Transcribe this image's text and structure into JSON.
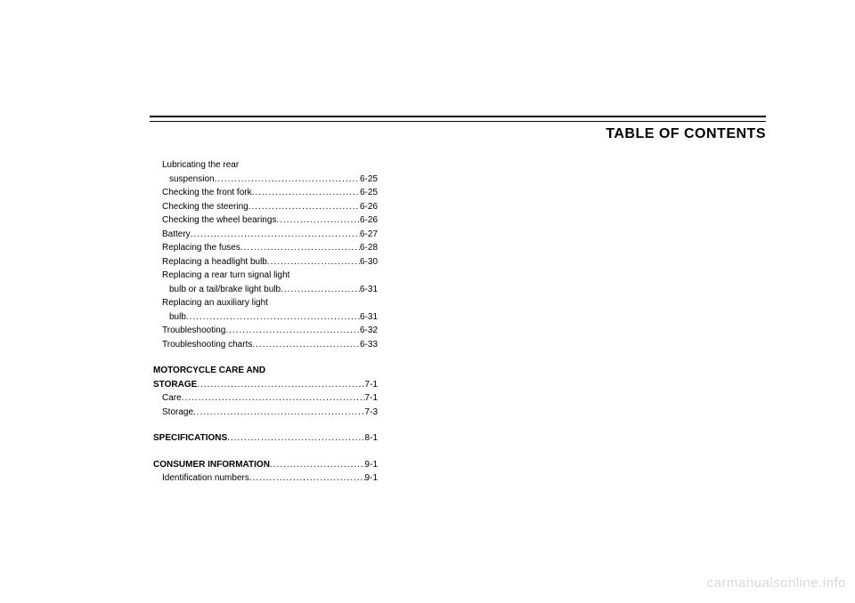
{
  "title": "TABLE OF CONTENTS",
  "watermark": "carmanualsonline.info",
  "toc": {
    "group1": [
      {
        "text": "Lubricating the rear",
        "wrap": true,
        "indent": 1
      },
      {
        "text": "suspension ",
        "page": "6-25",
        "indent": 2
      },
      {
        "text": "Checking the front fork ",
        "page": "6-25",
        "indent": 1
      },
      {
        "text": "Checking the steering ",
        "page": "6-26",
        "indent": 1
      },
      {
        "text": "Checking the wheel bearings ",
        "page": "6-26",
        "indent": 1
      },
      {
        "text": "Battery ",
        "page": "6-27",
        "indent": 1
      },
      {
        "text": "Replacing the fuses ",
        "page": "6-28",
        "indent": 1
      },
      {
        "text": "Replacing a headlight bulb ",
        "page": "6-30",
        "indent": 1
      },
      {
        "text": "Replacing a rear turn signal light",
        "wrap": true,
        "indent": 1
      },
      {
        "text": "bulb or a tail/brake light bulb ",
        "page": "6-31",
        "indent": 2
      },
      {
        "text": "Replacing an auxiliary light",
        "wrap": true,
        "indent": 1
      },
      {
        "text": "bulb ",
        "page": "6-31",
        "indent": 2
      },
      {
        "text": "Troubleshooting ",
        "page": "6-32",
        "indent": 1
      },
      {
        "text": "Troubleshooting charts ",
        "page": "6-33",
        "indent": 1
      }
    ],
    "group2": [
      {
        "text": "MOTORCYCLE CARE AND",
        "wrap": true,
        "bold": true,
        "indent": 0
      },
      {
        "text": "STORAGE",
        "page": "7-1",
        "bold": true,
        "indent": 0
      },
      {
        "text": "Care ",
        "page": "7-1",
        "indent": 1
      },
      {
        "text": "Storage ",
        "page": "7-3",
        "indent": 1
      }
    ],
    "group3": [
      {
        "text": "SPECIFICATIONS ",
        "page": "8-1",
        "bold": true,
        "indent": 0
      }
    ],
    "group4": [
      {
        "text": "CONSUMER INFORMATION",
        "page": "9-1",
        "bold": true,
        "indent": 0
      },
      {
        "text": "Identification numbers ",
        "page": "9-1",
        "indent": 1
      }
    ]
  }
}
